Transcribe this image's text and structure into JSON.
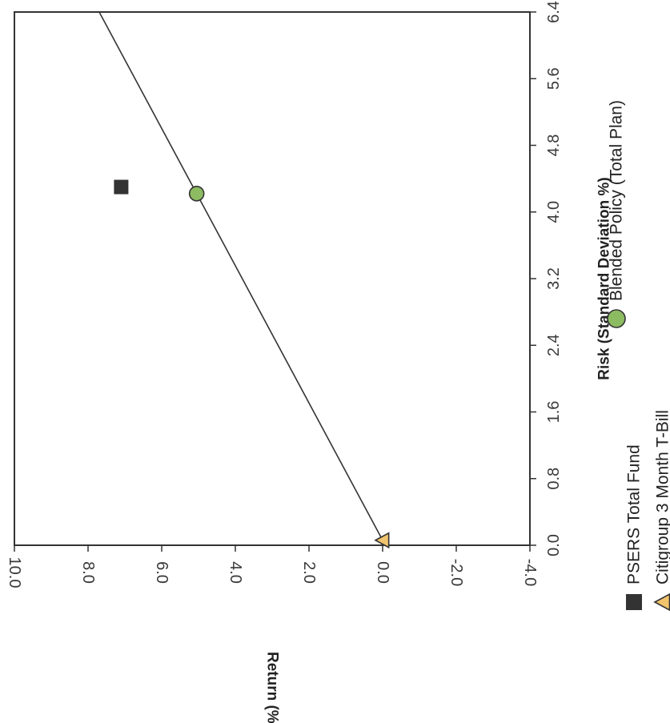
{
  "chart_data": {
    "type": "scatter",
    "title": "",
    "xlabel": "Risk (Standard Deviation %)",
    "ylabel": "Return (%)",
    "xlim": [
      0.0,
      6.4
    ],
    "ylim": [
      -4.0,
      10.0
    ],
    "x_ticks": [
      "0.0",
      "0.8",
      "1.6",
      "2.4",
      "3.2",
      "4.0",
      "4.8",
      "5.6",
      "6.4"
    ],
    "y_ticks": [
      "10.0",
      "8.0",
      "6.0",
      "4.0",
      "2.0",
      "0.0",
      "-2.0",
      "-4.0"
    ],
    "series": [
      {
        "name": "PSERS Total Fund",
        "marker": "square",
        "color": "#333333",
        "x": 4.3,
        "y": 7.1
      },
      {
        "name": "Blended Policy (Total Plan)",
        "marker": "circle",
        "color": "#8dbb62",
        "x": 4.22,
        "y": 5.05
      },
      {
        "name": "Citigroup 3 Month T-Bill",
        "marker": "triangle",
        "color": "#f2c46e",
        "x": 0.06,
        "y": 0.0
      }
    ],
    "capital_market_line": {
      "from": [
        0.06,
        0.0
      ],
      "through": [
        4.22,
        5.05
      ]
    },
    "grid": false,
    "legend_position": "bottom"
  }
}
